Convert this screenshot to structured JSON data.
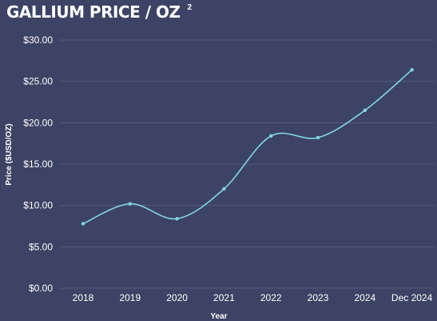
{
  "title": "GALLIUM PRICE / OZ",
  "footnote": "2",
  "colors": {
    "background": "#3d4364",
    "line": "#7fd6e4",
    "grid": "#535a7c",
    "text": "#ffffff"
  },
  "chart_data": {
    "type": "line",
    "title": "GALLIUM PRICE / OZ",
    "xlabel": "Year",
    "ylabel": "Price  ($USD/OZ)",
    "categories": [
      "2018",
      "2019",
      "2020",
      "2021",
      "2022",
      "2023",
      "2024",
      "Dec 2024"
    ],
    "series": [
      {
        "values": [
          7.8,
          10.2,
          8.4,
          12.0,
          18.4,
          18.2,
          21.5,
          26.4
        ]
      }
    ],
    "ylim": [
      0,
      30
    ],
    "yticks": [
      0,
      5,
      10,
      15,
      20,
      25,
      30
    ],
    "ytick_labels": [
      "$0.00",
      "$5.00",
      "$10.00",
      "$15.00",
      "$20.00",
      "$25.00",
      "$30.00"
    ],
    "grid": true,
    "smooth": true,
    "markers": true
  }
}
